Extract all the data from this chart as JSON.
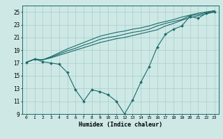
{
  "xlabel": "Humidex (Indice chaleur)",
  "ylabel": "",
  "background_color": "#cde8e5",
  "grid_color": "#a8cfcc",
  "line_color": "#1a6b6b",
  "x_values": [
    0,
    1,
    2,
    3,
    4,
    5,
    6,
    7,
    8,
    9,
    10,
    11,
    12,
    13,
    14,
    15,
    16,
    17,
    18,
    19,
    20,
    21,
    22,
    23
  ],
  "line1": [
    17.1,
    17.6,
    17.2,
    17.0,
    16.8,
    15.5,
    12.8,
    11.0,
    12.8,
    12.5,
    12.0,
    11.0,
    9.0,
    11.2,
    14.0,
    16.4,
    19.5,
    21.5,
    22.3,
    22.8,
    24.3,
    24.0,
    24.8,
    25.0
  ],
  "line2": [
    17.1,
    17.6,
    17.5,
    17.8,
    18.2,
    18.6,
    19.0,
    19.4,
    19.8,
    20.2,
    20.5,
    20.8,
    21.0,
    21.3,
    21.6,
    21.9,
    22.2,
    22.8,
    23.2,
    23.7,
    24.1,
    24.4,
    24.7,
    25.0
  ],
  "line3": [
    17.1,
    17.6,
    17.5,
    17.9,
    18.4,
    18.9,
    19.3,
    19.8,
    20.2,
    20.7,
    21.0,
    21.2,
    21.5,
    21.8,
    22.0,
    22.3,
    22.8,
    23.2,
    23.5,
    23.8,
    24.4,
    24.6,
    24.9,
    25.1
  ],
  "line4": [
    17.1,
    17.6,
    17.5,
    18.0,
    18.6,
    19.2,
    19.7,
    20.2,
    20.7,
    21.2,
    21.5,
    21.8,
    22.0,
    22.3,
    22.5,
    22.8,
    23.2,
    23.5,
    23.8,
    24.2,
    24.5,
    24.8,
    25.0,
    25.2
  ],
  "ylim": [
    9,
    26
  ],
  "yticks": [
    9,
    11,
    13,
    15,
    17,
    19,
    21,
    23,
    25
  ],
  "xlim": [
    -0.5,
    23.5
  ]
}
